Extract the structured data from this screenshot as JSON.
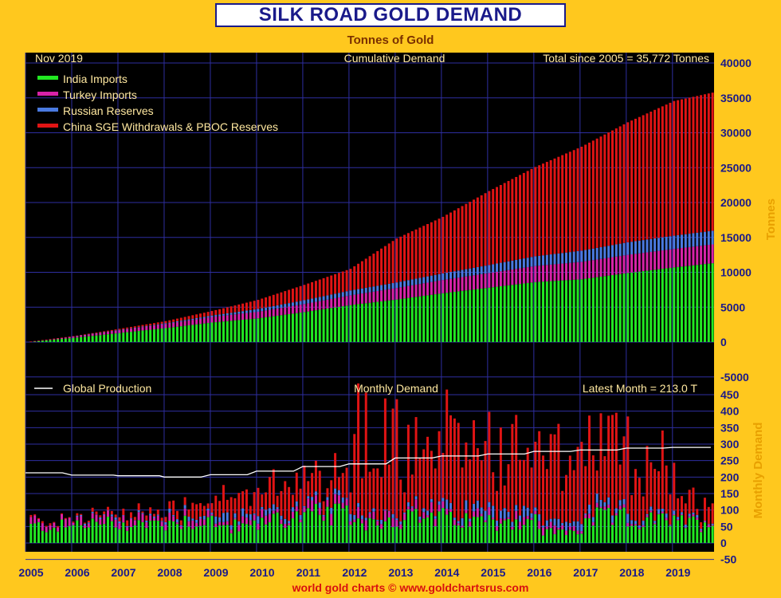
{
  "header": {
    "title": "SILK ROAD GOLD DEMAND",
    "subtitle": "Tonnes of Gold"
  },
  "footer": {
    "credit": "world gold charts © www.goldchartsrus.com"
  },
  "colors": {
    "background": "#000000",
    "frame": "#ffc81e",
    "grid": "#2e2ea0",
    "india": "#22e822",
    "turkey": "#d822a8",
    "russia": "#4a7ae0",
    "china": "#e01414",
    "production": "#ffffff",
    "text_light": "#ffe8a0",
    "axis_label": "#e8a000",
    "title_text": "#1a1a8a"
  },
  "chart_data": [
    {
      "panel": "cumulative",
      "type": "bar",
      "stacked": true,
      "header_left": "Nov  2019",
      "header_center": "Cumulative Demand",
      "header_right": "Total since 2005 = 35,772 Tonnes",
      "ylabel": "Tonnes",
      "ylim": [
        -5000,
        40000
      ],
      "yticks": [
        "40000",
        "35000",
        "30000",
        "25000",
        "20000",
        "15000",
        "10000",
        "5000",
        "0",
        "-5000"
      ],
      "x_start": "2005-01",
      "x_end": "2019-11",
      "xticks": [
        "2005",
        "2006",
        "2007",
        "2008",
        "2009",
        "2010",
        "2011",
        "2012",
        "2013",
        "2014",
        "2015",
        "2016",
        "2017",
        "2018",
        "2019"
      ],
      "legend": [
        "India Imports",
        "Turkey Imports",
        "Russian Reserves",
        "China SGE Withdrawals & PBOC Reserves"
      ],
      "legend_position": "top-left",
      "grid": true,
      "series_anchors": {
        "years": [
          2005,
          2006,
          2007,
          2008,
          2009,
          2010,
          2011,
          2012,
          2013,
          2014,
          2015,
          2016,
          2017,
          2018,
          2019,
          2019.83
        ],
        "india": [
          0,
          600,
          1300,
          2000,
          2800,
          3400,
          4300,
          5300,
          6100,
          7000,
          7800,
          8600,
          9000,
          9900,
          10700,
          11300
        ],
        "turkey": [
          0,
          200,
          400,
          600,
          800,
          950,
          1150,
          1400,
          1650,
          1900,
          2100,
          2300,
          2500,
          2600,
          2650,
          2700
        ],
        "russia": [
          0,
          0,
          50,
          100,
          200,
          400,
          550,
          700,
          800,
          950,
          1150,
          1400,
          1600,
          1800,
          1900,
          1950
        ],
        "china": [
          0,
          50,
          150,
          300,
          650,
          1300,
          2200,
          3100,
          6300,
          8100,
          10600,
          12800,
          14900,
          17200,
          19300,
          19800
        ]
      }
    },
    {
      "panel": "monthly",
      "type": "bar",
      "stacked": true,
      "header_center": "Monthly Demand",
      "header_right": "Latest Month = 213.0 T",
      "line_legend": "Global Production",
      "ylabel": "Monthly Demand",
      "ylim": [
        -50,
        450
      ],
      "yticks": [
        "450",
        "400",
        "350",
        "300",
        "250",
        "200",
        "150",
        "100",
        "50",
        "0",
        "-50"
      ],
      "latest_month_total": 213.0,
      "production_line": {
        "x": [
          2005.0,
          2005.8,
          2006.0,
          2006.9,
          2007.0,
          2007.9,
          2008.0,
          2008.8,
          2009.0,
          2009.8,
          2010.0,
          2010.8,
          2011.0,
          2011.8,
          2012.0,
          2012.8,
          2013.0,
          2013.8,
          2014.0,
          2014.8,
          2015.0,
          2015.8,
          2016.0,
          2016.8,
          2017.0,
          2017.8,
          2018.0,
          2018.8,
          2019.0,
          2019.83
        ],
        "y": [
          213,
          213,
          206,
          206,
          204,
          204,
          200,
          200,
          207,
          207,
          218,
          218,
          232,
          232,
          240,
          240,
          258,
          258,
          264,
          264,
          270,
          270,
          278,
          278,
          282,
          282,
          288,
          288,
          290,
          290
        ]
      }
    }
  ]
}
